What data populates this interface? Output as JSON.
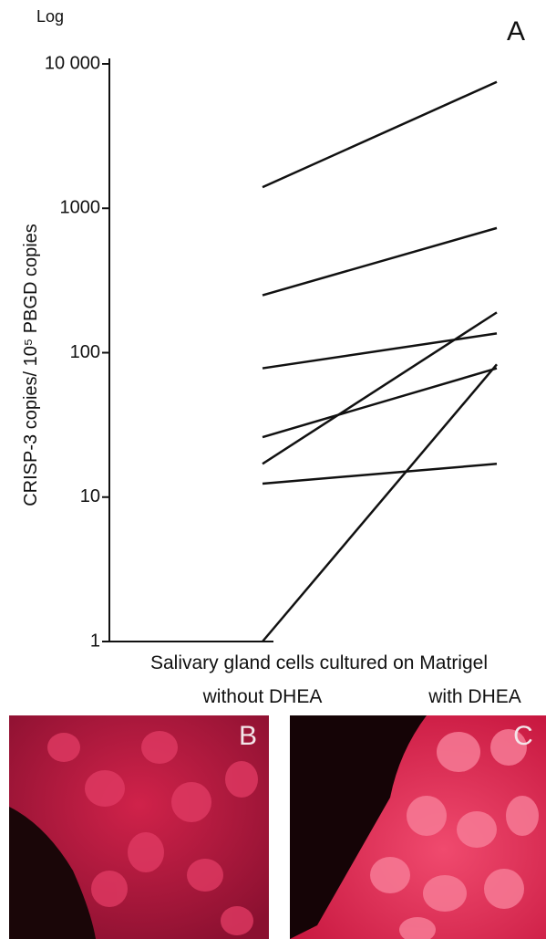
{
  "chart_data": {
    "type": "line",
    "panel_label": "A",
    "log_label": "Log",
    "ylabel": "CRISP-3 copies/ 10⁵ PBGD copies",
    "xlabel": "Salivary gland cells cultured on Matrigel",
    "categories": [
      "without DHEA",
      "with DHEA"
    ],
    "log_scale": true,
    "ylim": [
      1,
      10000
    ],
    "yticks": [
      1,
      10,
      100,
      1000,
      {
        "value": 10000,
        "label": "10 000"
      }
    ],
    "series": [
      {
        "color": "#111111",
        "values": [
          1400,
          7500
        ]
      },
      {
        "color": "#111111",
        "values": [
          250,
          730
        ]
      },
      {
        "color": "#111111",
        "values": [
          78,
          136
        ]
      },
      {
        "color": "#111111",
        "values": [
          26,
          78
        ]
      },
      {
        "color": "#111111",
        "values": [
          17,
          190
        ]
      },
      {
        "color": "#111111",
        "values": [
          12.4,
          17
        ]
      },
      {
        "color": "#111111",
        "values": [
          1,
          83
        ]
      }
    ]
  },
  "panels": [
    {
      "label": "B"
    },
    {
      "label": "C"
    }
  ]
}
